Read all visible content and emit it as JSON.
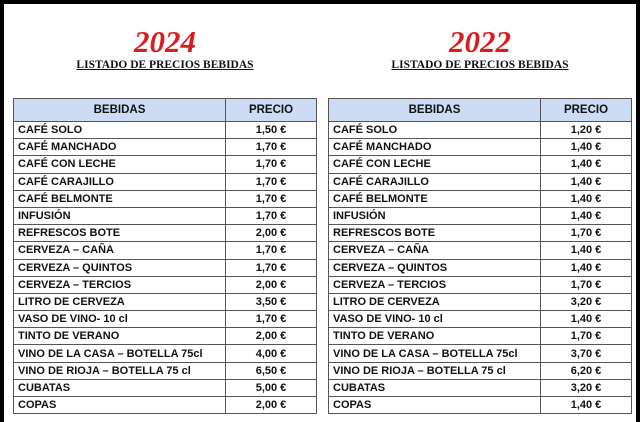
{
  "tables": [
    {
      "year": "2024",
      "subtitle": "LISTADO DE PRECIOS BEBIDAS",
      "headers": [
        "BEBIDAS",
        "PRECIO"
      ],
      "rows": [
        [
          "CAFÉ SOLO",
          "1,50 €"
        ],
        [
          "CAFÉ MANCHADO",
          "1,70 €"
        ],
        [
          "CAFÉ CON LECHE",
          "1,70 €"
        ],
        [
          "CAFÉ CARAJILLO",
          "1,70 €"
        ],
        [
          "CAFÉ BELMONTE",
          "1,70 €"
        ],
        [
          "INFUSIÓN",
          "1,70 €"
        ],
        [
          "REFRESCOS BOTE",
          "2,00 €"
        ],
        [
          "CERVEZA – CAÑA",
          "1,70 €"
        ],
        [
          "CERVEZA – QUINTOS",
          "1,70 €"
        ],
        [
          "CERVEZA – TERCIOS",
          "2,00 €"
        ],
        [
          "LITRO DE CERVEZA",
          "3,50 €"
        ],
        [
          "VASO DE VINO- 10 cl",
          "1,70 €"
        ],
        [
          "TINTO DE VERANO",
          "2,00 €"
        ],
        [
          "VINO DE LA CASA – BOTELLA 75cl",
          "4,00 €"
        ],
        [
          "VINO DE RIOJA – BOTELLA 75 cl",
          "6,50 €"
        ],
        [
          "CUBATAS",
          "5,00 €"
        ],
        [
          "COPAS",
          "2,00 €"
        ]
      ]
    },
    {
      "year": "2022",
      "subtitle": "LISTADO DE PRECIOS BEBIDAS",
      "headers": [
        "BEBIDAS",
        "PRECIO"
      ],
      "rows": [
        [
          "CAFÉ SOLO",
          "1,20 €"
        ],
        [
          "CAFÉ MANCHADO",
          "1,40 €"
        ],
        [
          "CAFÉ CON LECHE",
          "1,40 €"
        ],
        [
          "CAFÉ CARAJILLO",
          "1,40 €"
        ],
        [
          "CAFÉ BELMONTE",
          "1,40 €"
        ],
        [
          "INFUSIÓN",
          "1,40 €"
        ],
        [
          "REFRESCOS BOTE",
          "1,70 €"
        ],
        [
          "CERVEZA – CAÑA",
          "1,40 €"
        ],
        [
          "CERVEZA – QUINTOS",
          "1,40 €"
        ],
        [
          "CERVEZA – TERCIOS",
          "1,70 €"
        ],
        [
          "LITRO DE CERVEZA",
          "3,20 €"
        ],
        [
          "VASO DE VINO- 10 cl",
          "1,40 €"
        ],
        [
          "TINTO DE VERANO",
          "1,70 €"
        ],
        [
          "VINO DE LA CASA – BOTELLA 75cl",
          "3,70 €"
        ],
        [
          "VINO DE RIOJA – BOTELLA 75 cl",
          "6,20 €"
        ],
        [
          "CUBATAS",
          "3,20 €"
        ],
        [
          "COPAS",
          "1,40 €"
        ]
      ]
    }
  ]
}
